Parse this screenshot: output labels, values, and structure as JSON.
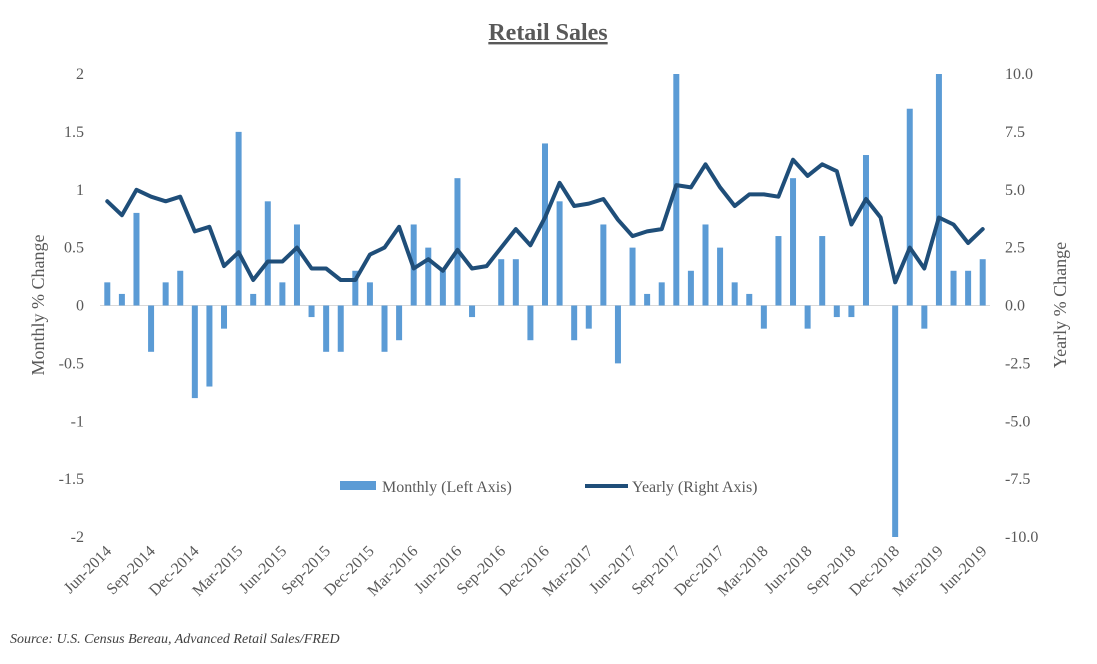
{
  "chart_data": {
    "type": "bar+line",
    "title": "Retail Sales",
    "source": "Source: U.S. Census Bereau, Advanced Retail Sales/FRED",
    "left_axis": {
      "label": "Monthly % Change",
      "range": [
        -2,
        2
      ],
      "ticks": [
        "-2",
        "-1.5",
        "-1",
        "-0.5",
        "0",
        "0.5",
        "1",
        "1.5",
        "2"
      ]
    },
    "right_axis": {
      "label": "Yearly % Change",
      "range": [
        -10,
        10
      ],
      "ticks": [
        "-10.0",
        "-7.5",
        "-5.0",
        "-2.5",
        "0.0",
        "2.5",
        "5.0",
        "7.5",
        "10.0"
      ]
    },
    "x_tick_labels": [
      "Jun-2014",
      "Sep-2014",
      "Dec-2014",
      "Mar-2015",
      "Jun-2015",
      "Sep-2015",
      "Dec-2015",
      "Mar-2016",
      "Jun-2016",
      "Sep-2016",
      "Dec-2016",
      "Mar-2017",
      "Jun-2017",
      "Sep-2017",
      "Dec-2017",
      "Mar-2018",
      "Jun-2018",
      "Sep-2018",
      "Dec-2018",
      "Mar-2019",
      "Jun-2019"
    ],
    "categories": [
      "Jun-2014",
      "Jul-2014",
      "Aug-2014",
      "Sep-2014",
      "Oct-2014",
      "Nov-2014",
      "Dec-2014",
      "Jan-2015",
      "Feb-2015",
      "Mar-2015",
      "Apr-2015",
      "May-2015",
      "Jun-2015",
      "Jul-2015",
      "Aug-2015",
      "Sep-2015",
      "Oct-2015",
      "Nov-2015",
      "Dec-2015",
      "Jan-2016",
      "Feb-2016",
      "Mar-2016",
      "Apr-2016",
      "May-2016",
      "Jun-2016",
      "Jul-2016",
      "Aug-2016",
      "Sep-2016",
      "Oct-2016",
      "Nov-2016",
      "Dec-2016",
      "Jan-2017",
      "Feb-2017",
      "Mar-2017",
      "Apr-2017",
      "May-2017",
      "Jun-2017",
      "Jul-2017",
      "Aug-2017",
      "Sep-2017",
      "Oct-2017",
      "Nov-2017",
      "Dec-2017",
      "Jan-2018",
      "Feb-2018",
      "Mar-2018",
      "Apr-2018",
      "May-2018",
      "Jun-2018",
      "Jul-2018",
      "Aug-2018",
      "Sep-2018",
      "Oct-2018",
      "Nov-2018",
      "Dec-2018",
      "Jan-2019",
      "Feb-2019",
      "Mar-2019",
      "Apr-2019",
      "May-2019",
      "Jun-2019"
    ],
    "series": [
      {
        "name": "Monthly (Left Axis)",
        "type": "bar",
        "axis": "left",
        "color": "#5B9BD5",
        "values": [
          0.2,
          0.1,
          0.8,
          -0.4,
          0.2,
          0.3,
          -0.8,
          -0.7,
          -0.2,
          1.5,
          0.1,
          0.9,
          0.2,
          0.7,
          -0.1,
          -0.4,
          -0.4,
          0.3,
          0.2,
          -0.4,
          -0.3,
          0.7,
          0.5,
          0.3,
          1.1,
          -0.1,
          0.0,
          0.4,
          0.4,
          -0.3,
          1.4,
          0.9,
          -0.3,
          -0.2,
          0.7,
          -0.5,
          0.5,
          0.1,
          0.2,
          2.0,
          0.3,
          0.7,
          0.5,
          0.2,
          0.1,
          -0.2,
          0.6,
          1.1,
          -0.2,
          0.6,
          -0.1,
          -0.1,
          1.3,
          0.0,
          -2.0,
          1.7,
          -0.2,
          2.0,
          0.3,
          0.3,
          0.4
        ]
      },
      {
        "name": "Yearly (Right Axis)",
        "type": "line",
        "axis": "right",
        "color": "#1F4E79",
        "values": [
          4.5,
          3.9,
          5.0,
          4.7,
          4.5,
          4.7,
          3.2,
          3.4,
          1.7,
          2.3,
          1.1,
          1.9,
          1.9,
          2.5,
          1.6,
          1.6,
          1.1,
          1.1,
          2.2,
          2.5,
          3.4,
          1.6,
          2.0,
          1.5,
          2.4,
          1.6,
          1.7,
          2.5,
          3.3,
          2.6,
          3.8,
          5.3,
          4.3,
          4.4,
          4.6,
          3.7,
          3.0,
          3.2,
          3.3,
          5.2,
          5.1,
          6.1,
          5.1,
          4.3,
          4.8,
          4.8,
          4.7,
          6.3,
          5.6,
          6.1,
          5.8,
          3.5,
          4.6,
          3.8,
          1.0,
          2.5,
          1.6,
          3.8,
          3.5,
          2.7,
          3.3
        ]
      }
    ],
    "legend": {
      "position": "bottom-center inside plot"
    }
  }
}
